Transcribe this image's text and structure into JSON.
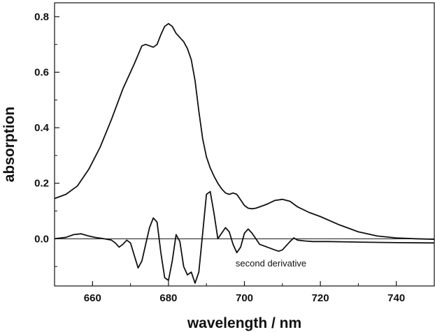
{
  "chart_data": {
    "type": "line",
    "title": "",
    "xlabel": "wavelength / nm",
    "ylabel": "absorption",
    "xlim": [
      650,
      750
    ],
    "ylim": [
      -0.17,
      0.85
    ],
    "x_ticks": [
      660,
      680,
      700,
      720,
      740
    ],
    "y_ticks": [
      0.0,
      0.2,
      0.4,
      0.6,
      0.8
    ],
    "x_tick_labels": [
      "660",
      "680",
      "700",
      "720",
      "740"
    ],
    "y_tick_labels": [
      "0.0",
      "0.2",
      "0.4",
      "0.6",
      "0.8"
    ],
    "grid": false,
    "legend": "none",
    "zero_line": true,
    "annotations": [
      {
        "text": "second derivative",
        "x": 707,
        "y": -0.1
      }
    ],
    "series": [
      {
        "color": "#111111",
        "x": [
          650,
          653,
          656,
          659,
          662,
          665,
          668,
          671,
          673,
          674,
          675,
          676,
          677,
          678,
          679,
          680,
          681,
          682,
          683,
          684,
          685,
          686,
          687,
          688,
          689,
          690,
          691,
          692,
          693,
          694,
          695,
          696,
          697,
          698,
          699,
          700,
          701,
          702,
          703,
          704,
          706,
          708,
          710,
          712,
          714,
          717,
          720,
          725,
          730,
          735,
          740,
          745,
          750
        ],
        "y": [
          0.145,
          0.16,
          0.19,
          0.25,
          0.33,
          0.43,
          0.54,
          0.63,
          0.695,
          0.7,
          0.695,
          0.69,
          0.7,
          0.735,
          0.765,
          0.775,
          0.765,
          0.74,
          0.725,
          0.71,
          0.685,
          0.645,
          0.57,
          0.46,
          0.36,
          0.295,
          0.255,
          0.225,
          0.2,
          0.18,
          0.165,
          0.16,
          0.165,
          0.16,
          0.14,
          0.12,
          0.11,
          0.108,
          0.11,
          0.115,
          0.125,
          0.138,
          0.142,
          0.135,
          0.115,
          0.095,
          0.08,
          0.05,
          0.025,
          0.01,
          0.003,
          0.0,
          -0.002
        ]
      },
      {
        "color": "#111111",
        "x": [
          650,
          653,
          655,
          657,
          659,
          661,
          663,
          665,
          666,
          667,
          668,
          669,
          670,
          671,
          672,
          673,
          674,
          675,
          676,
          677,
          678,
          679,
          680,
          681,
          682,
          683,
          684,
          685,
          686,
          687,
          688,
          689,
          690,
          691,
          692,
          693,
          694,
          695,
          696,
          697,
          698,
          699,
          700,
          701,
          702,
          703,
          704,
          705,
          706,
          707,
          708,
          709,
          710,
          711,
          712,
          713,
          714,
          716,
          718,
          722,
          730,
          740,
          750
        ],
        "y": [
          0.0,
          0.005,
          0.015,
          0.018,
          0.01,
          0.004,
          0.0,
          -0.005,
          -0.015,
          -0.03,
          -0.02,
          -0.005,
          -0.015,
          -0.06,
          -0.105,
          -0.08,
          -0.02,
          0.04,
          0.075,
          0.06,
          -0.05,
          -0.14,
          -0.15,
          -0.08,
          0.015,
          -0.01,
          -0.1,
          -0.13,
          -0.12,
          -0.16,
          -0.12,
          0.02,
          0.16,
          0.17,
          0.09,
          0.0,
          0.02,
          0.04,
          0.025,
          -0.02,
          -0.05,
          -0.03,
          0.02,
          0.035,
          0.02,
          0.0,
          -0.02,
          -0.025,
          -0.03,
          -0.035,
          -0.04,
          -0.045,
          -0.04,
          -0.025,
          -0.01,
          0.003,
          -0.005,
          -0.008,
          -0.01,
          -0.01,
          -0.012,
          -0.014,
          -0.015
        ]
      }
    ]
  }
}
